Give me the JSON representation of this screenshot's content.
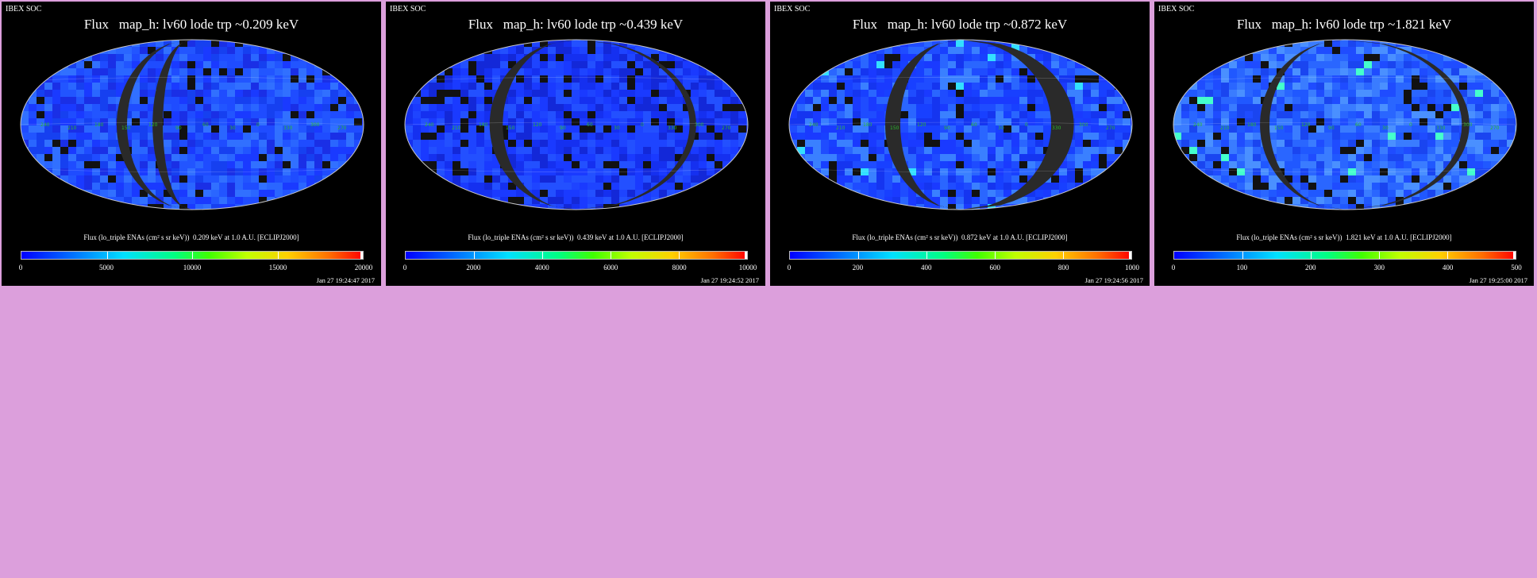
{
  "colors": {
    "background": "#dc9fdc",
    "panel": "#000000",
    "sky_blue": "#1a3fff",
    "dark_band": "#2a2a2a"
  },
  "panels": [
    {
      "header": "IBEX SOC",
      "title": "Flux   map_h: lv60 lode trp ~0.209 keV",
      "colorbar_label": "Flux (lo_triple ENAs (cm² s sr keV))  0.209 keV at 1.0 A.U. [ECLIPJ2000]",
      "ticks": [
        "0",
        "5000",
        "10000",
        "15000",
        "20000"
      ],
      "timestamp": "Jan 27 19:24:47 2017"
    },
    {
      "header": "IBEX SOC",
      "title": "Flux   map_h: lv60 lode trp ~0.439 keV",
      "colorbar_label": "Flux (lo_triple ENAs (cm² s sr keV))  0.439 keV at 1.0 A.U. [ECLIPJ2000]",
      "ticks": [
        "0",
        "2000",
        "4000",
        "6000",
        "8000",
        "10000"
      ],
      "timestamp": "Jan 27 19:24:52 2017"
    },
    {
      "header": "IBEX SOC",
      "title": "Flux   map_h: lv60 lode trp ~0.872 keV",
      "colorbar_label": "Flux (lo_triple ENAs (cm² s sr keV))  0.872 keV at 1.0 A.U. [ECLIPJ2000]",
      "ticks": [
        "0",
        "200",
        "400",
        "600",
        "800",
        "1000"
      ],
      "timestamp": "Jan 27 19:24:56 2017"
    },
    {
      "header": "IBEX SOC",
      "title": "Flux   map_h: lv60 lode trp ~1.821 keV",
      "colorbar_label": "Flux (lo_triple ENAs (cm² s sr keV))  1.821 keV at 1.0 A.U. [ECLIPJ2000]",
      "ticks": [
        "0",
        "100",
        "200",
        "300",
        "400",
        "500"
      ],
      "timestamp": "Jan 27 19:25:00 2017"
    }
  ]
}
